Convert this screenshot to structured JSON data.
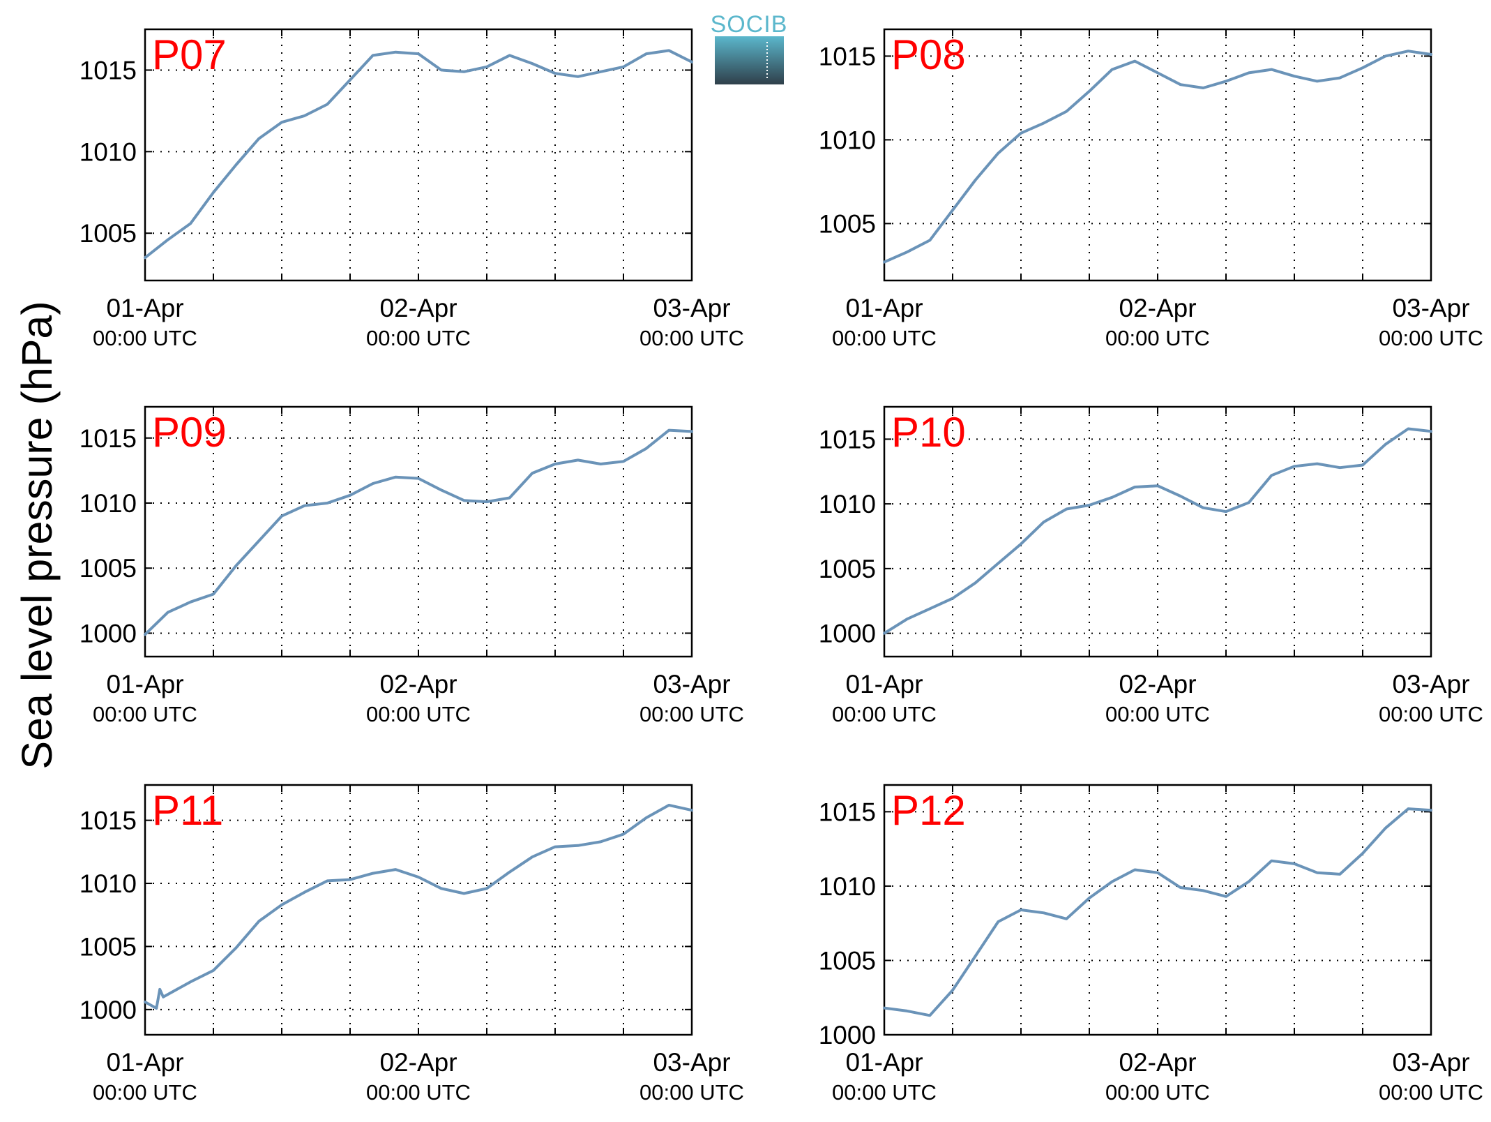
{
  "figure": {
    "ylabel": "Sea level pressure (hPa)",
    "logo": {
      "text": "SOCIB"
    }
  },
  "colors": {
    "series": "#6a93b8",
    "panel_title": "#ff0000",
    "logo_top": "#5bb7cc",
    "logo_bottom": "#2f3f4a"
  },
  "chart_data": [
    {
      "type": "line",
      "title": "P07",
      "x_ticks": [
        {
          "main": "01-Apr",
          "sub": "00:00 UTC",
          "hours": 0
        },
        {
          "main": "02-Apr",
          "sub": "00:00 UTC",
          "hours": 24
        },
        {
          "main": "03-Apr",
          "sub": "00:00 UTC",
          "hours": 48
        }
      ],
      "xlim": [
        0,
        48
      ],
      "grid": true,
      "ylim": [
        1002.1,
        1017.5
      ],
      "yticks": [
        1005,
        1010,
        1015
      ],
      "series": [
        {
          "x": [
            0,
            2,
            4,
            6,
            8,
            10,
            12,
            14,
            16,
            18,
            20,
            22,
            24,
            26,
            28,
            30,
            32,
            34,
            36,
            38,
            40,
            42,
            44,
            46,
            48
          ],
          "values": [
            1003.5,
            1004.6,
            1005.6,
            1007.5,
            1009.2,
            1010.8,
            1011.8,
            1012.2,
            1012.9,
            1014.4,
            1015.9,
            1016.1,
            1016.0,
            1015.0,
            1014.9,
            1015.2,
            1015.9,
            1015.4,
            1014.8,
            1014.6,
            1014.9,
            1015.2,
            1016.0,
            1016.2,
            1015.5
          ]
        }
      ]
    },
    {
      "type": "line",
      "title": "P08",
      "x_ticks": [
        {
          "main": "01-Apr",
          "sub": "00:00 UTC",
          "hours": 0
        },
        {
          "main": "02-Apr",
          "sub": "00:00 UTC",
          "hours": 24
        },
        {
          "main": "03-Apr",
          "sub": "00:00 UTC",
          "hours": 48
        }
      ],
      "xlim": [
        0,
        48
      ],
      "grid": true,
      "ylim": [
        1001.6,
        1016.6
      ],
      "yticks": [
        1005,
        1010,
        1015
      ],
      "series": [
        {
          "x": [
            0,
            2,
            4,
            6,
            8,
            10,
            12,
            14,
            16,
            18,
            20,
            22,
            24,
            26,
            28,
            30,
            32,
            34,
            36,
            38,
            40,
            42,
            44,
            46,
            48
          ],
          "values": [
            1002.7,
            1003.3,
            1004.0,
            1005.8,
            1007.6,
            1009.2,
            1010.4,
            1011.0,
            1011.7,
            1012.9,
            1014.2,
            1014.7,
            1014.0,
            1013.3,
            1013.1,
            1013.5,
            1014.0,
            1014.2,
            1013.8,
            1013.5,
            1013.7,
            1014.3,
            1015.0,
            1015.3,
            1015.1
          ]
        }
      ]
    },
    {
      "type": "line",
      "title": "P09",
      "x_ticks": [
        {
          "main": "01-Apr",
          "sub": "00:00 UTC",
          "hours": 0
        },
        {
          "main": "02-Apr",
          "sub": "00:00 UTC",
          "hours": 24
        },
        {
          "main": "03-Apr",
          "sub": "00:00 UTC",
          "hours": 48
        }
      ],
      "xlim": [
        0,
        48
      ],
      "grid": true,
      "ylim": [
        998.2,
        1017.4
      ],
      "yticks": [
        1000,
        1005,
        1010,
        1015
      ],
      "series": [
        {
          "x": [
            0,
            2,
            4,
            6,
            8,
            10,
            12,
            14,
            16,
            18,
            20,
            22,
            24,
            26,
            28,
            30,
            32,
            34,
            36,
            38,
            40,
            42,
            44,
            46,
            48
          ],
          "values": [
            999.9,
            1001.6,
            1002.4,
            1003.0,
            1005.2,
            1007.1,
            1009.0,
            1009.8,
            1010.0,
            1010.6,
            1011.5,
            1012.0,
            1011.9,
            1011.0,
            1010.2,
            1010.1,
            1010.4,
            1012.3,
            1013.0,
            1013.3,
            1013.0,
            1013.2,
            1014.2,
            1015.6,
            1015.5
          ]
        }
      ]
    },
    {
      "type": "line",
      "title": "P10",
      "x_ticks": [
        {
          "main": "01-Apr",
          "sub": "00:00 UTC",
          "hours": 0
        },
        {
          "main": "02-Apr",
          "sub": "00:00 UTC",
          "hours": 24
        },
        {
          "main": "03-Apr",
          "sub": "00:00 UTC",
          "hours": 48
        }
      ],
      "xlim": [
        0,
        48
      ],
      "grid": true,
      "ylim": [
        998.2,
        1017.5
      ],
      "yticks": [
        1000,
        1005,
        1010,
        1015
      ],
      "series": [
        {
          "x": [
            0,
            2,
            4,
            6,
            8,
            10,
            12,
            14,
            16,
            18,
            20,
            22,
            24,
            26,
            28,
            30,
            32,
            34,
            36,
            38,
            40,
            42,
            44,
            46,
            48
          ],
          "values": [
            1000.0,
            1001.1,
            1001.9,
            1002.7,
            1003.9,
            1005.4,
            1006.9,
            1008.6,
            1009.6,
            1009.9,
            1010.5,
            1011.3,
            1011.4,
            1010.6,
            1009.7,
            1009.4,
            1010.1,
            1012.2,
            1012.9,
            1013.1,
            1012.8,
            1013.0,
            1014.6,
            1015.8,
            1015.6
          ]
        }
      ]
    },
    {
      "type": "line",
      "title": "P11",
      "x_ticks": [
        {
          "main": "01-Apr",
          "sub": "00:00 UTC",
          "hours": 0
        },
        {
          "main": "02-Apr",
          "sub": "00:00 UTC",
          "hours": 24
        },
        {
          "main": "03-Apr",
          "sub": "00:00 UTC",
          "hours": 48
        }
      ],
      "xlim": [
        0,
        48
      ],
      "grid": true,
      "ylim": [
        998.0,
        1017.8
      ],
      "yticks": [
        1000,
        1005,
        1010,
        1015
      ],
      "series": [
        {
          "x": [
            0,
            1,
            1.3,
            1.6,
            2,
            4,
            6,
            8,
            10,
            12,
            14,
            16,
            18,
            20,
            22,
            24,
            26,
            28,
            30,
            32,
            34,
            36,
            38,
            40,
            42,
            44,
            46,
            48
          ],
          "values": [
            1000.6,
            1000.1,
            1001.6,
            1001.0,
            1001.2,
            1002.2,
            1003.1,
            1004.9,
            1007.0,
            1008.3,
            1009.3,
            1010.2,
            1010.3,
            1010.8,
            1011.1,
            1010.5,
            1009.6,
            1009.2,
            1009.6,
            1010.9,
            1012.1,
            1012.9,
            1013.0,
            1013.3,
            1013.9,
            1015.2,
            1016.2,
            1015.8
          ]
        }
      ]
    },
    {
      "type": "line",
      "title": "P12",
      "x_ticks": [
        {
          "main": "01-Apr",
          "sub": "00:00 UTC",
          "hours": 0
        },
        {
          "main": "02-Apr",
          "sub": "00:00 UTC",
          "hours": 24
        },
        {
          "main": "03-Apr",
          "sub": "00:00 UTC",
          "hours": 48
        }
      ],
      "xlim": [
        0,
        48
      ],
      "grid": true,
      "ylim": [
        1000.0,
        1016.8
      ],
      "yticks": [
        1000,
        1005,
        1010,
        1015
      ],
      "series": [
        {
          "x": [
            0,
            2,
            4,
            6,
            8,
            10,
            12,
            14,
            16,
            18,
            20,
            22,
            24,
            26,
            28,
            30,
            32,
            34,
            36,
            38,
            40,
            42,
            44,
            46,
            48
          ],
          "values": [
            1001.8,
            1001.6,
            1001.3,
            1003.0,
            1005.3,
            1007.6,
            1008.4,
            1008.2,
            1007.8,
            1009.2,
            1010.3,
            1011.1,
            1010.9,
            1009.9,
            1009.7,
            1009.3,
            1010.3,
            1011.7,
            1011.5,
            1010.9,
            1010.8,
            1012.2,
            1013.9,
            1015.2,
            1015.1
          ]
        }
      ]
    }
  ]
}
